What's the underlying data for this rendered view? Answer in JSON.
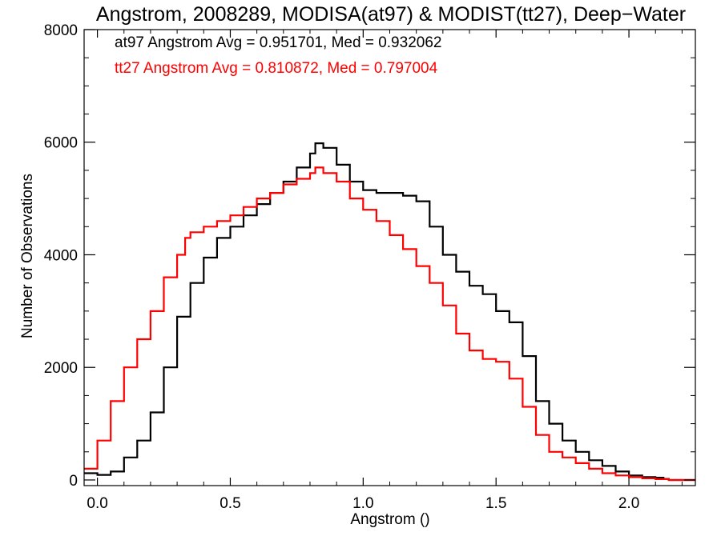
{
  "chart_data": {
    "type": "line",
    "step": true,
    "title": "Angstrom, 2008289, MODISA(at97) & MODIST(tt27), Deep−Water",
    "xlabel": "Angstrom ()",
    "ylabel": "Number of Observations",
    "xlim": [
      -0.05,
      2.25
    ],
    "ylim": [
      -100,
      8000
    ],
    "xticks": [
      {
        "value": 0.0,
        "label": "0.0"
      },
      {
        "value": 0.5,
        "label": "0.5"
      },
      {
        "value": 1.0,
        "label": "1.0"
      },
      {
        "value": 1.5,
        "label": "1.5"
      },
      {
        "value": 2.0,
        "label": "2.0"
      }
    ],
    "yticks": [
      {
        "value": 0,
        "label": "0"
      },
      {
        "value": 2000,
        "label": "2000"
      },
      {
        "value": 4000,
        "label": "4000"
      },
      {
        "value": 6000,
        "label": "6000"
      },
      {
        "value": 8000,
        "label": "8000"
      }
    ],
    "annotations": [
      {
        "text": "at97 Angstrom Avg = 0.951701, Med = 0.932062",
        "color": "#000000"
      },
      {
        "text": "tt27 Angstrom Avg = 0.810872, Med = 0.797004",
        "color": "#ff0000"
      }
    ],
    "series": [
      {
        "key": "at97",
        "color": "#000000",
        "x": [
          -0.05,
          0.0,
          0.05,
          0.1,
          0.15,
          0.2,
          0.25,
          0.3,
          0.35,
          0.4,
          0.45,
          0.5,
          0.55,
          0.6,
          0.65,
          0.7,
          0.75,
          0.8,
          0.82,
          0.85,
          0.9,
          0.95,
          1.0,
          1.05,
          1.1,
          1.15,
          1.2,
          1.25,
          1.3,
          1.35,
          1.4,
          1.45,
          1.5,
          1.55,
          1.6,
          1.65,
          1.7,
          1.75,
          1.8,
          1.85,
          1.9,
          1.95,
          2.0,
          2.05,
          2.1,
          2.13,
          2.15,
          2.25
        ],
        "y": [
          120,
          90,
          150,
          400,
          700,
          1200,
          2000,
          2900,
          3500,
          3950,
          4300,
          4500,
          4700,
          4900,
          5100,
          5300,
          5550,
          5800,
          5980,
          5900,
          5600,
          5300,
          5150,
          5100,
          5100,
          5050,
          4950,
          4500,
          4000,
          3700,
          3450,
          3300,
          3000,
          2800,
          2200,
          1400,
          1000,
          700,
          500,
          350,
          250,
          150,
          80,
          50,
          40,
          20,
          0,
          0
        ]
      },
      {
        "key": "tt27",
        "color": "#ff0000",
        "x": [
          -0.05,
          0.0,
          0.05,
          0.1,
          0.15,
          0.2,
          0.25,
          0.3,
          0.33,
          0.35,
          0.4,
          0.45,
          0.5,
          0.55,
          0.6,
          0.65,
          0.7,
          0.75,
          0.8,
          0.82,
          0.85,
          0.9,
          0.95,
          1.0,
          1.05,
          1.1,
          1.15,
          1.2,
          1.25,
          1.3,
          1.35,
          1.4,
          1.45,
          1.5,
          1.55,
          1.6,
          1.65,
          1.7,
          1.75,
          1.8,
          1.85,
          1.9,
          1.95,
          2.0,
          2.05,
          2.1,
          2.15,
          2.25
        ],
        "y": [
          200,
          700,
          1400,
          2000,
          2500,
          3000,
          3600,
          4000,
          4300,
          4400,
          4500,
          4600,
          4700,
          4850,
          5000,
          5100,
          5250,
          5350,
          5450,
          5550,
          5450,
          5300,
          5000,
          4800,
          4600,
          4350,
          4100,
          3800,
          3500,
          3100,
          2600,
          2300,
          2150,
          2100,
          1800,
          1300,
          800,
          500,
          400,
          300,
          200,
          120,
          80,
          50,
          30,
          15,
          0,
          0
        ]
      }
    ]
  }
}
